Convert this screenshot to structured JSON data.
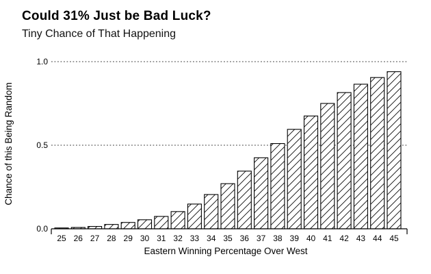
{
  "page": {
    "background_color": "#ffffff",
    "text_color": "#000000",
    "grid_color": "#8c8c8c",
    "bar_fill": "#ffffff",
    "bar_stroke": "#000000"
  },
  "chart_data": {
    "type": "bar",
    "title": "Could 31% Just be Bad Luck?",
    "subtitle": "Tiny Chance of That Happening",
    "xlabel": "Eastern Winning Percentage Over West",
    "ylabel": "Chance of this Being Random",
    "categories": [
      "25",
      "26",
      "27",
      "28",
      "29",
      "30",
      "31",
      "32",
      "33",
      "34",
      "35",
      "36",
      "37",
      "38",
      "39",
      "40",
      "41",
      "42",
      "43",
      "44",
      "45"
    ],
    "values": [
      0.005,
      0.008,
      0.014,
      0.026,
      0.038,
      0.054,
      0.074,
      0.103,
      0.148,
      0.205,
      0.27,
      0.345,
      0.425,
      0.51,
      0.595,
      0.675,
      0.75,
      0.815,
      0.865,
      0.905,
      0.94
    ],
    "ylim": [
      0,
      1
    ],
    "yticks": [
      0,
      0.5,
      1
    ],
    "ytick_labels": [
      "0.0",
      "0.5",
      "1.0"
    ],
    "grid": "horizontal dotted gridlines at 0.5 and 1.0",
    "legend": "none",
    "bar_style": "white fill with black forward-diagonal hatch, black outline",
    "colors": {
      "grid": "#8c8c8c",
      "text": "#000000",
      "bar_fill": "#ffffff",
      "bar_stroke": "#000000",
      "background": "#ffffff"
    }
  }
}
